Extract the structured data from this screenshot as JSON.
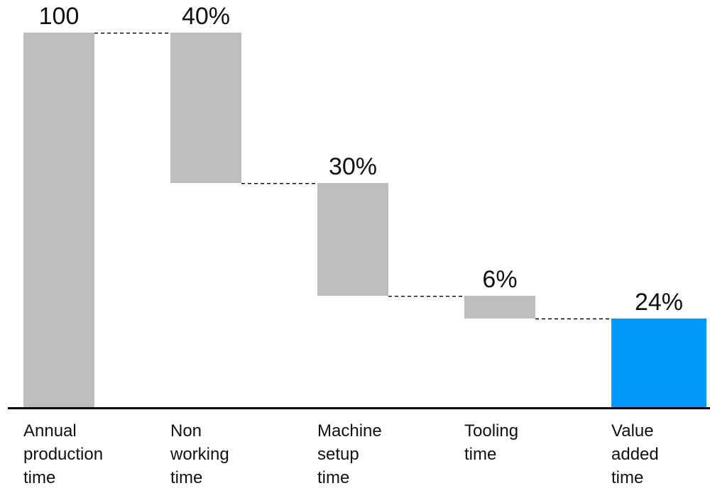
{
  "chart_data": {
    "type": "bar",
    "subtype": "waterfall",
    "title": "",
    "xlabel": "",
    "ylabel": "",
    "value_range": [
      0,
      100
    ],
    "grid": false,
    "legend": "none",
    "colors": {
      "gray": "#bdbdbd",
      "blue": "#0099fa",
      "text": "#111111",
      "axis": "#000000",
      "connector": "#000000"
    },
    "bars": [
      {
        "name": "annual-production-time",
        "label_lines": [
          "Annual",
          "production",
          "time"
        ],
        "value_label": "100",
        "value": 100,
        "start": 0,
        "end": 100,
        "role": "total",
        "color": "gray"
      },
      {
        "name": "non-working-time",
        "label_lines": [
          "Non",
          "working",
          "time"
        ],
        "value_label": "40%",
        "value": 40,
        "start": 100,
        "end": 60,
        "role": "decrease",
        "color": "gray"
      },
      {
        "name": "machine-setup-time",
        "label_lines": [
          "Machine",
          "setup",
          "time"
        ],
        "value_label": "30%",
        "value": 30,
        "start": 60,
        "end": 30,
        "role": "decrease",
        "color": "gray"
      },
      {
        "name": "tooling-time",
        "label_lines": [
          "Tooling",
          "time"
        ],
        "value_label": "6%",
        "value": 6,
        "start": 30,
        "end": 24,
        "role": "decrease",
        "color": "gray"
      },
      {
        "name": "value-added-time",
        "label_lines": [
          "Value",
          "added",
          "time"
        ],
        "value_label": "24%",
        "value": 24,
        "start": 0,
        "end": 24,
        "role": "result",
        "color": "blue"
      }
    ],
    "connectors": [
      {
        "from": 0,
        "to": 1,
        "level": 100
      },
      {
        "from": 1,
        "to": 2,
        "level": 60
      },
      {
        "from": 2,
        "to": 3,
        "level": 30
      },
      {
        "from": 3,
        "to": 4,
        "level": 24
      }
    ]
  }
}
